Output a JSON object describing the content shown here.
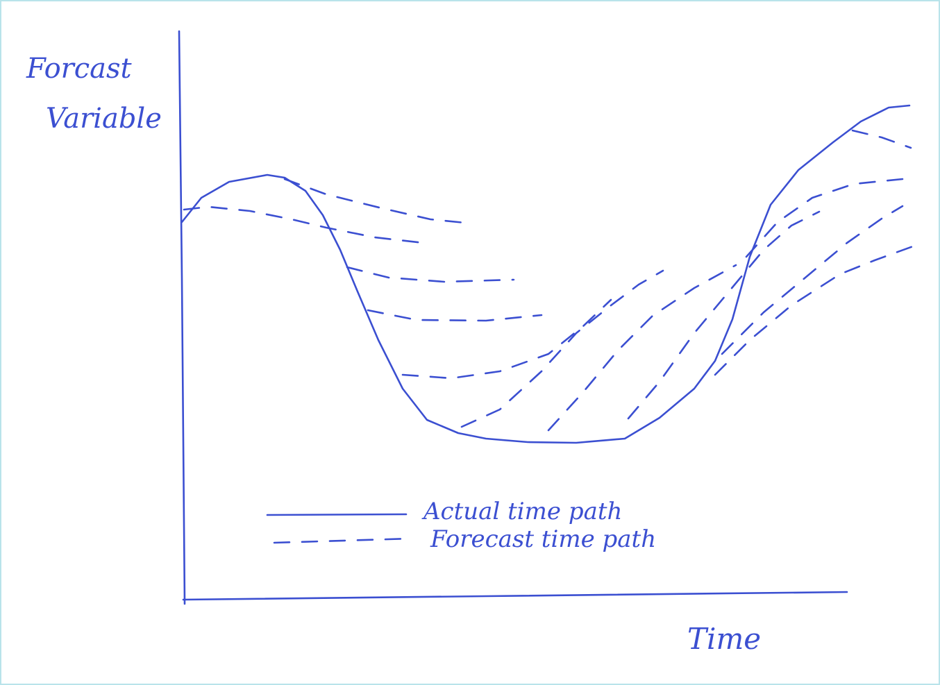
{
  "axes": {
    "y_label": [
      "Forcast",
      "Variable"
    ],
    "x_label": "Time"
  },
  "legend": [
    {
      "label": "Actual time path"
    },
    {
      "label": "Forecast time path"
    }
  ]
}
